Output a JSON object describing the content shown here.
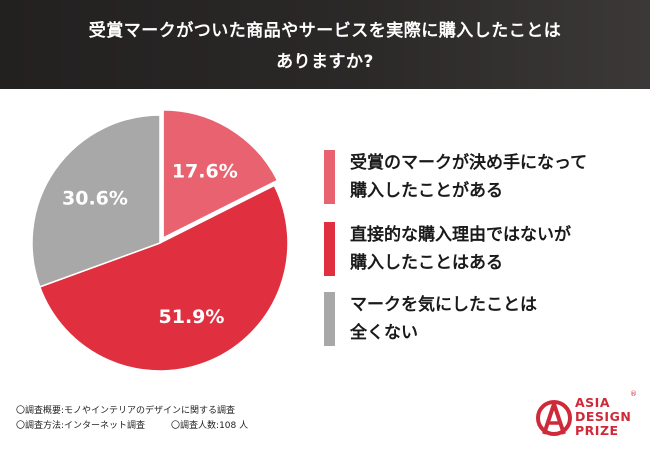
{
  "title": {
    "line1": "受賞マークがついた商品やサービスを実際に購入したことは",
    "line2": "ありますか?"
  },
  "chart_data": {
    "type": "pie",
    "title": "受賞マークがついた商品やサービスを実際に購入したことはありますか?",
    "slices": [
      {
        "label": "受賞のマークが決め手になって購入したことがある",
        "lines": [
          "受賞のマークが決め手になって",
          "購入したことがある"
        ],
        "value": 17.6,
        "value_label": "17.6%",
        "color": "#e8636f"
      },
      {
        "label": "直接的な購入理由ではないが購入したことはある",
        "lines": [
          "直接的な購入理由ではないが",
          "購入したことはある"
        ],
        "value": 51.9,
        "value_label": "51.9%",
        "color": "#e0303f"
      },
      {
        "label": "マークを気にしたことは全くない",
        "lines": [
          "マークを気にしたことは",
          "全くない"
        ],
        "value": 30.6,
        "value_label": "30.6%",
        "color": "#a8a8a8"
      }
    ],
    "start_angle_deg": 0,
    "direction": "clockwise",
    "legend_position": "right"
  },
  "notes": {
    "survey_summary": "〇調査概要:モノやインテリアのデザインに関する調査",
    "survey_method": "〇調査方法:インターネット調査",
    "respondents": "〇調査人数:108 人"
  },
  "logo": {
    "line1": "ASIA",
    "line2": "DESIGN",
    "line3": "PRIZE",
    "reg_mark": "®",
    "color": "#cf2a39"
  }
}
